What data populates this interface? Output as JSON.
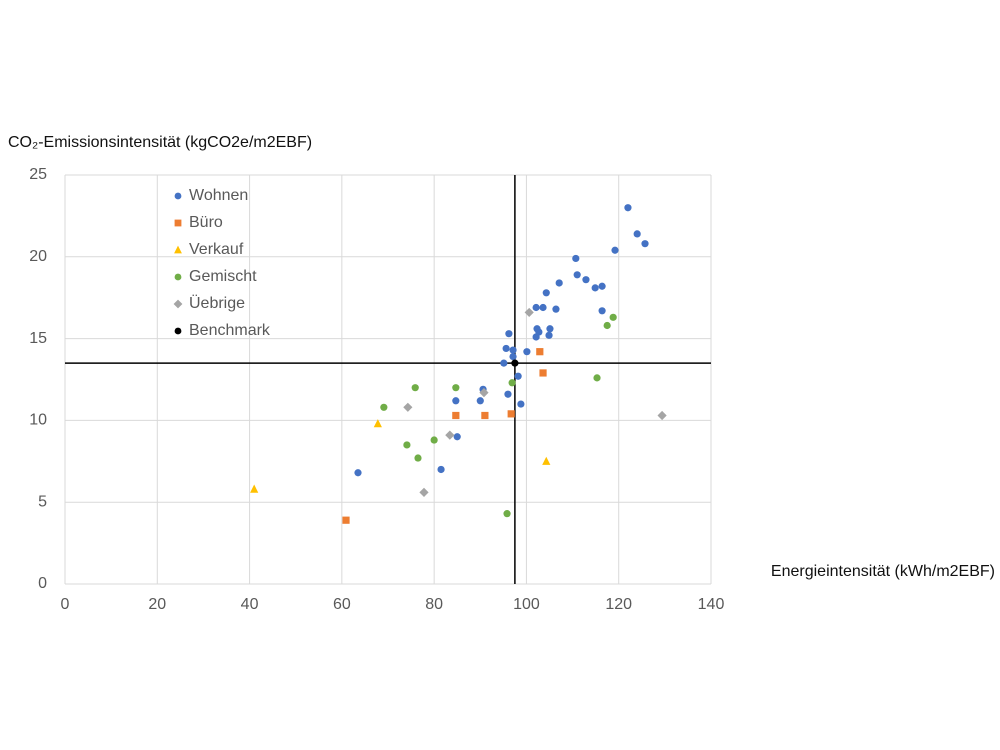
{
  "chart_data": {
    "type": "scatter",
    "y_axis_label": "CO₂-Emissionsintensität (kgCO2e/m2EBF)",
    "x_axis_label": "Energieintensität (kWh/m2EBF)",
    "xlim": [
      0,
      140
    ],
    "xticks": [
      0,
      20,
      40,
      60,
      80,
      100,
      120,
      140
    ],
    "ylim": [
      0,
      25
    ],
    "yticks": [
      0,
      5,
      10,
      15,
      20,
      25
    ],
    "grid": true,
    "legend": "top-left",
    "series": [
      {
        "name": "Wohnen",
        "color": "#4472c4",
        "marker": "circle",
        "x": [
          63.5,
          81.5,
          85.0,
          84.7,
          90.0,
          90.6,
          96.0,
          98.8,
          98.2,
          95.1,
          97.1,
          95.6,
          97.1,
          96.2,
          100.1,
          102.1,
          102.3,
          102.7,
          105.1,
          104.9,
          102.1,
          103.6,
          106.4,
          104.3,
          107.1,
          110.7,
          111.0,
          112.9,
          114.9,
          116.4,
          116.4,
          119.2,
          122.0,
          124.0,
          125.7
        ],
        "y": [
          6.8,
          7.0,
          9.0,
          11.2,
          11.2,
          11.9,
          11.6,
          11.0,
          12.7,
          13.5,
          13.9,
          14.4,
          14.3,
          15.3,
          14.2,
          15.1,
          15.6,
          15.4,
          15.6,
          15.2,
          16.9,
          16.9,
          16.8,
          17.8,
          18.4,
          19.9,
          18.9,
          18.6,
          18.1,
          18.2,
          16.7,
          20.4,
          23.0,
          21.4,
          20.8
        ]
      },
      {
        "name": "Büro",
        "color": "#ed7d31",
        "marker": "square",
        "x": [
          60.9,
          84.7,
          91.0,
          96.7,
          103.6,
          102.9
        ],
        "y": [
          3.9,
          10.3,
          10.3,
          10.4,
          12.9,
          14.2
        ]
      },
      {
        "name": "Verkauf",
        "color": "#ffc000",
        "marker": "triangle",
        "x": [
          41.0,
          67.8,
          104.3
        ],
        "y": [
          5.8,
          9.8,
          7.5
        ]
      },
      {
        "name": "Gemischt",
        "color": "#70ad47",
        "marker": "circle",
        "x": [
          69.1,
          75.9,
          74.1,
          76.5,
          80.0,
          84.7,
          95.8,
          96.9,
          115.3,
          117.5,
          118.8
        ],
        "y": [
          10.8,
          12.0,
          8.5,
          7.7,
          8.8,
          12.0,
          4.3,
          12.3,
          12.6,
          15.8,
          16.3
        ]
      },
      {
        "name": "Üebrige",
        "color": "#a5a5a5",
        "marker": "diamond",
        "x": [
          74.3,
          77.8,
          83.4,
          90.8,
          100.6,
          129.4
        ],
        "y": [
          10.8,
          5.6,
          9.1,
          11.7,
          16.6,
          10.3
        ]
      },
      {
        "name": "Benchmark",
        "color": "#000000",
        "marker": "circle",
        "crosshair": true,
        "x": [
          97.5
        ],
        "y": [
          13.5
        ]
      }
    ]
  }
}
